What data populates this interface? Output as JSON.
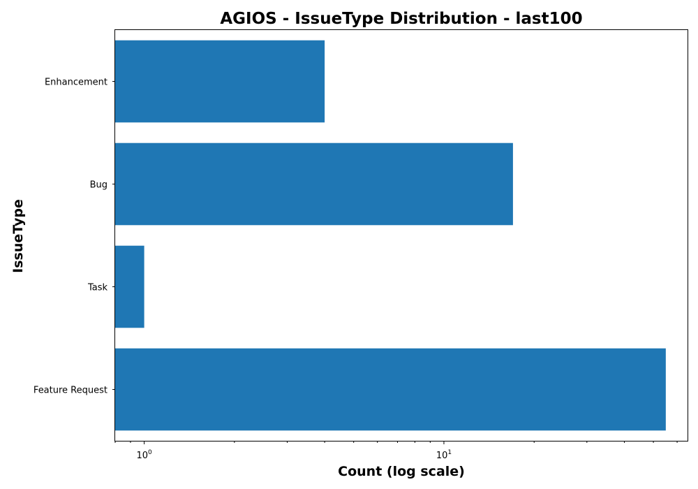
{
  "chart_data": {
    "type": "bar",
    "orientation": "horizontal",
    "title": "AGIOS - IssueType Distribution - last100",
    "xlabel": "Count (log scale)",
    "ylabel": "IssueType",
    "xscale": "log",
    "xlim": [
      0.8,
      65
    ],
    "categories": [
      "Enhancement",
      "Bug",
      "Task",
      "Feature Request"
    ],
    "values": [
      4,
      17,
      1,
      55
    ],
    "bar_color": "#1f77b4",
    "grid": false,
    "legend": "none",
    "major_ticks": [
      {
        "value": 1,
        "base": "10",
        "exp": "0"
      },
      {
        "value": 10,
        "base": "10",
        "exp": "1"
      }
    ]
  }
}
